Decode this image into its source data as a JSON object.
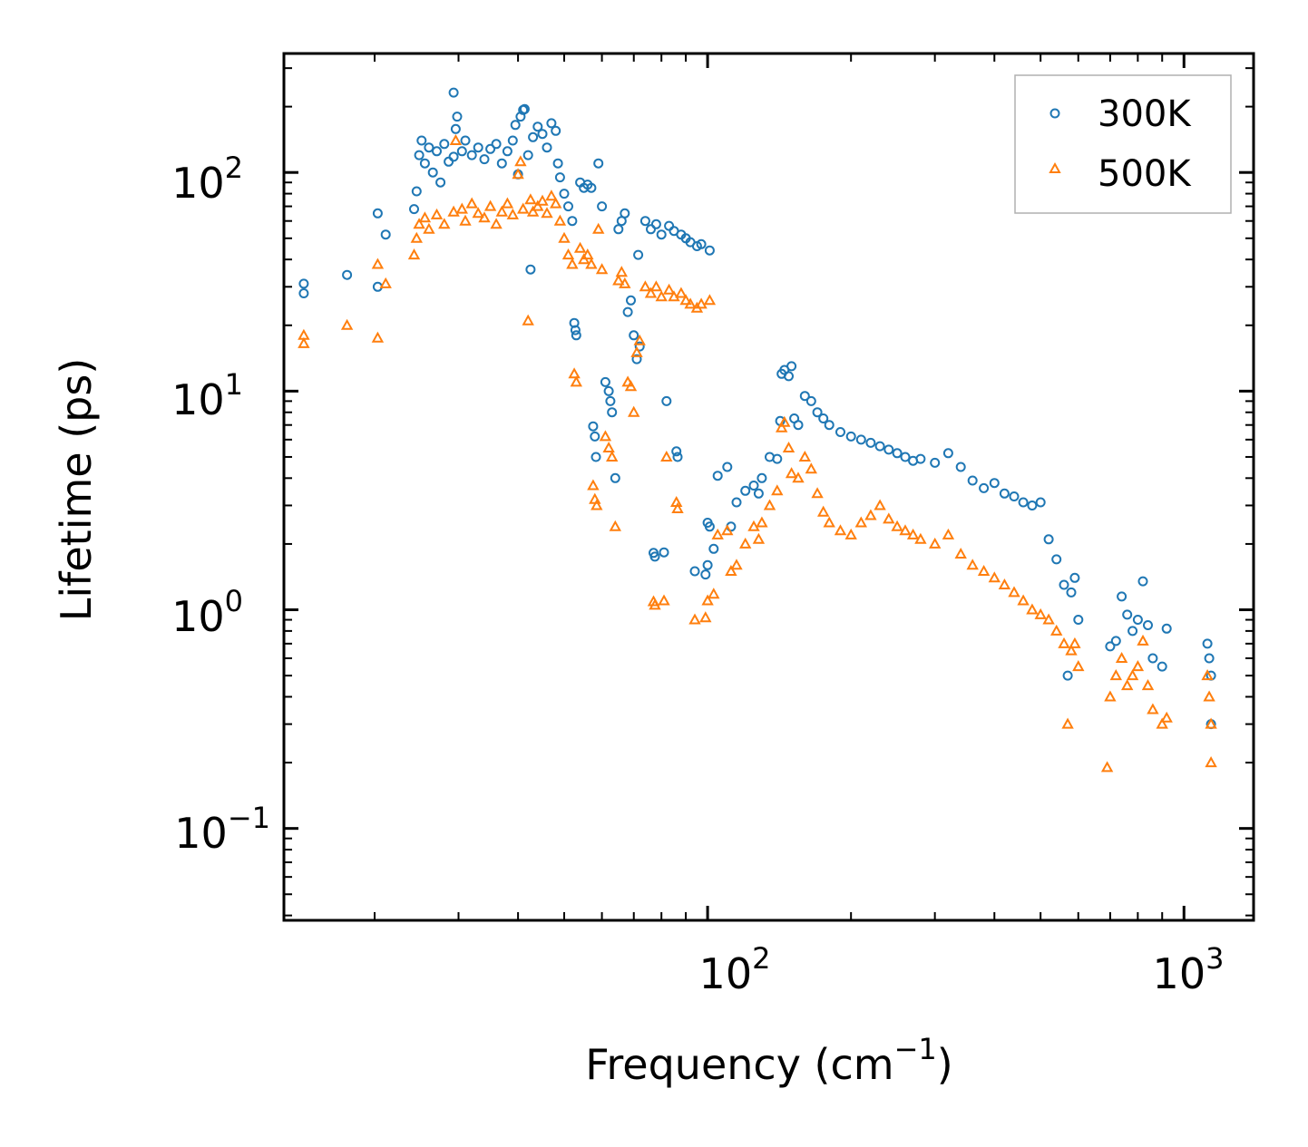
{
  "chart_data": {
    "type": "scatter",
    "xscale": "log",
    "yscale": "log",
    "xlabel": "Frequency (cm",
    "xlabel_sup": "−1",
    "xlabel_close": ")",
    "ylabel": "Lifetime (ps)",
    "xlim": [
      12.9,
      1400
    ],
    "ylim": [
      0.038,
      350
    ],
    "x_ticks": [
      {
        "value": 100,
        "base": "10",
        "exp": "2"
      },
      {
        "value": 1000,
        "base": "10",
        "exp": "3"
      }
    ],
    "y_ticks": [
      {
        "value": 0.1,
        "base": "10",
        "exp": "−1"
      },
      {
        "value": 1,
        "base": "10",
        "exp": "0"
      },
      {
        "value": 10,
        "base": "10",
        "exp": "1"
      },
      {
        "value": 100,
        "base": "10",
        "exp": "2"
      }
    ],
    "legend": {
      "position": "top-right",
      "entries": [
        "300K",
        "500K"
      ]
    },
    "series": [
      {
        "name": "300K",
        "marker": "circle",
        "color": "#1f77b4",
        "points": [
          [
            14.2,
            28
          ],
          [
            14.2,
            31
          ],
          [
            17.5,
            34
          ],
          [
            20.3,
            30
          ],
          [
            20.3,
            65
          ],
          [
            21.1,
            52
          ],
          [
            24.2,
            68
          ],
          [
            24.5,
            82
          ],
          [
            24.8,
            120
          ],
          [
            25.1,
            140
          ],
          [
            25.5,
            110
          ],
          [
            26.0,
            130
          ],
          [
            26.5,
            100
          ],
          [
            27.0,
            125
          ],
          [
            27.5,
            90
          ],
          [
            28.0,
            135
          ],
          [
            28.6,
            112
          ],
          [
            29.3,
            118
          ],
          [
            29.3,
            232
          ],
          [
            29.6,
            158
          ],
          [
            29.8,
            180
          ],
          [
            30.5,
            125
          ],
          [
            31.0,
            140
          ],
          [
            32.0,
            120
          ],
          [
            33.0,
            130
          ],
          [
            34.0,
            115
          ],
          [
            35.0,
            128
          ],
          [
            36.0,
            135
          ],
          [
            37.0,
            110
          ],
          [
            38.0,
            125
          ],
          [
            39.0,
            140
          ],
          [
            39.5,
            165
          ],
          [
            40.0,
            98
          ],
          [
            40.5,
            180
          ],
          [
            41.0,
            193
          ],
          [
            41.3,
            195
          ],
          [
            42.0,
            120
          ],
          [
            42.5,
            36
          ],
          [
            43.0,
            145
          ],
          [
            44.0,
            162
          ],
          [
            45.0,
            150
          ],
          [
            46.0,
            130
          ],
          [
            47.0,
            168
          ],
          [
            48.0,
            155
          ],
          [
            48.5,
            110
          ],
          [
            49.0,
            95
          ],
          [
            50.0,
            80
          ],
          [
            51.0,
            70
          ],
          [
            52.0,
            60
          ],
          [
            52.5,
            20.5
          ],
          [
            52.8,
            19
          ],
          [
            53.0,
            18
          ],
          [
            54.0,
            90
          ],
          [
            55.0,
            85
          ],
          [
            56.0,
            88
          ],
          [
            57.0,
            85
          ],
          [
            57.5,
            6.9
          ],
          [
            58.0,
            6.2
          ],
          [
            58.3,
            5
          ],
          [
            59.0,
            110
          ],
          [
            60.0,
            70
          ],
          [
            61.0,
            11
          ],
          [
            62.0,
            10
          ],
          [
            62.5,
            9
          ],
          [
            63.0,
            8
          ],
          [
            64.0,
            4
          ],
          [
            65.0,
            55
          ],
          [
            66.0,
            60
          ],
          [
            67.0,
            65
          ],
          [
            68.0,
            23
          ],
          [
            69.0,
            26
          ],
          [
            70.0,
            18
          ],
          [
            71.0,
            14
          ],
          [
            71.5,
            42
          ],
          [
            72.0,
            16
          ],
          [
            74.0,
            60
          ],
          [
            76.0,
            55
          ],
          [
            77.0,
            1.82
          ],
          [
            77.5,
            1.75
          ],
          [
            78.0,
            58
          ],
          [
            80.0,
            52
          ],
          [
            81.0,
            1.83
          ],
          [
            82.0,
            9
          ],
          [
            83.0,
            57
          ],
          [
            85.0,
            54
          ],
          [
            86.0,
            5.3
          ],
          [
            86.5,
            5
          ],
          [
            88.0,
            52
          ],
          [
            90.0,
            50
          ],
          [
            92.0,
            48
          ],
          [
            94.0,
            1.5
          ],
          [
            95.0,
            46
          ],
          [
            97.0,
            47
          ],
          [
            99.0,
            1.45
          ],
          [
            100.0,
            2.5
          ],
          [
            100.0,
            1.6
          ],
          [
            101.0,
            2.4
          ],
          [
            101.0,
            44
          ],
          [
            103.0,
            1.9
          ],
          [
            105.0,
            4.1
          ],
          [
            110.0,
            4.5
          ],
          [
            112.0,
            2.4
          ],
          [
            115.0,
            3.1
          ],
          [
            120.0,
            3.5
          ],
          [
            125.0,
            3.7
          ],
          [
            128.0,
            3.4
          ],
          [
            130.0,
            4
          ],
          [
            135.0,
            5
          ],
          [
            140.0,
            4.9
          ],
          [
            142.0,
            7.3
          ],
          [
            143.0,
            12
          ],
          [
            145.0,
            12.5
          ],
          [
            148.0,
            11.7
          ],
          [
            150.0,
            13
          ],
          [
            152.0,
            7.5
          ],
          [
            155.0,
            7
          ],
          [
            160.0,
            9.5
          ],
          [
            165.0,
            9
          ],
          [
            170.0,
            8
          ],
          [
            175.0,
            7.5
          ],
          [
            180.0,
            7
          ],
          [
            190.0,
            6.5
          ],
          [
            200.0,
            6.2
          ],
          [
            210.0,
            6
          ],
          [
            220.0,
            5.8
          ],
          [
            230.0,
            5.6
          ],
          [
            240.0,
            5.4
          ],
          [
            250.0,
            5.2
          ],
          [
            260.0,
            5
          ],
          [
            270.0,
            4.8
          ],
          [
            280.0,
            4.9
          ],
          [
            300.0,
            4.7
          ],
          [
            320.0,
            5.2
          ],
          [
            340.0,
            4.5
          ],
          [
            360.0,
            3.9
          ],
          [
            380.0,
            3.6
          ],
          [
            400.0,
            3.8
          ],
          [
            420.0,
            3.4
          ],
          [
            440.0,
            3.3
          ],
          [
            460.0,
            3.1
          ],
          [
            480.0,
            3
          ],
          [
            500.0,
            3.1
          ],
          [
            520.0,
            2.1
          ],
          [
            540.0,
            1.7
          ],
          [
            560.0,
            1.3
          ],
          [
            570.0,
            0.5
          ],
          [
            580.0,
            1.2
          ],
          [
            590.0,
            1.4
          ],
          [
            600.0,
            0.9
          ],
          [
            700.0,
            0.68
          ],
          [
            720.0,
            0.72
          ],
          [
            740.0,
            1.15
          ],
          [
            760.0,
            0.95
          ],
          [
            780.0,
            0.8
          ],
          [
            800.0,
            0.9
          ],
          [
            820.0,
            1.35
          ],
          [
            840.0,
            0.85
          ],
          [
            860.0,
            0.6
          ],
          [
            900.0,
            0.55
          ],
          [
            920.0,
            0.82
          ],
          [
            1120.0,
            0.7
          ],
          [
            1130.0,
            0.6
          ],
          [
            1140.0,
            0.5
          ],
          [
            1140.0,
            0.3
          ]
        ]
      },
      {
        "name": "500K",
        "marker": "triangle",
        "color": "#ff7f0e",
        "points": [
          [
            14.2,
            16.5
          ],
          [
            14.2,
            18
          ],
          [
            17.5,
            20
          ],
          [
            20.3,
            17.5
          ],
          [
            20.3,
            38
          ],
          [
            21.1,
            31
          ],
          [
            24.2,
            42
          ],
          [
            24.5,
            50
          ],
          [
            24.8,
            58
          ],
          [
            25.5,
            62
          ],
          [
            26.0,
            55
          ],
          [
            27.0,
            64
          ],
          [
            28.0,
            58
          ],
          [
            29.3,
            66
          ],
          [
            29.6,
            140
          ],
          [
            30.5,
            68
          ],
          [
            31.0,
            60
          ],
          [
            32.0,
            72
          ],
          [
            33.0,
            65
          ],
          [
            34.0,
            62
          ],
          [
            35.0,
            70
          ],
          [
            36.0,
            58
          ],
          [
            37.0,
            66
          ],
          [
            38.0,
            72
          ],
          [
            39.0,
            64
          ],
          [
            40.0,
            98
          ],
          [
            40.5,
            112
          ],
          [
            41.0,
            68
          ],
          [
            42.0,
            21
          ],
          [
            42.5,
            75
          ],
          [
            43.0,
            66
          ],
          [
            44.0,
            70
          ],
          [
            45.0,
            74
          ],
          [
            46.0,
            65
          ],
          [
            47.0,
            78
          ],
          [
            48.0,
            72
          ],
          [
            49.0,
            60
          ],
          [
            50.0,
            50
          ],
          [
            51.0,
            42
          ],
          [
            52.0,
            38
          ],
          [
            52.5,
            12
          ],
          [
            53.0,
            11
          ],
          [
            54.0,
            45
          ],
          [
            55.0,
            40
          ],
          [
            56.0,
            42
          ],
          [
            57.0,
            38
          ],
          [
            57.5,
            3.7
          ],
          [
            58.0,
            3.2
          ],
          [
            58.5,
            3
          ],
          [
            59.0,
            55
          ],
          [
            60.0,
            36
          ],
          [
            61.0,
            6.2
          ],
          [
            62.0,
            5.5
          ],
          [
            63.0,
            5
          ],
          [
            64.0,
            2.4
          ],
          [
            65.0,
            32
          ],
          [
            66.0,
            35
          ],
          [
            67.0,
            31
          ],
          [
            68.0,
            11
          ],
          [
            69.0,
            10.5
          ],
          [
            70.0,
            8
          ],
          [
            71.0,
            15
          ],
          [
            72.0,
            17
          ],
          [
            74.0,
            30
          ],
          [
            76.0,
            28
          ],
          [
            77.0,
            1.09
          ],
          [
            77.5,
            1.05
          ],
          [
            78.0,
            30
          ],
          [
            80.0,
            27
          ],
          [
            81.0,
            1.1
          ],
          [
            82.0,
            5
          ],
          [
            83.0,
            29
          ],
          [
            85.0,
            27
          ],
          [
            86.0,
            3.1
          ],
          [
            86.5,
            2.9
          ],
          [
            88.0,
            28
          ],
          [
            90.0,
            26
          ],
          [
            92.0,
            25
          ],
          [
            94.0,
            0.9
          ],
          [
            95.0,
            24
          ],
          [
            97.0,
            25
          ],
          [
            99.0,
            0.92
          ],
          [
            100.0,
            1.1
          ],
          [
            101.0,
            26
          ],
          [
            103.0,
            1.18
          ],
          [
            105.0,
            2.2
          ],
          [
            110.0,
            2.3
          ],
          [
            112.0,
            1.5
          ],
          [
            115.0,
            1.6
          ],
          [
            120.0,
            2
          ],
          [
            125.0,
            2.4
          ],
          [
            128.0,
            2.1
          ],
          [
            130.0,
            2.5
          ],
          [
            135.0,
            3
          ],
          [
            140.0,
            3.5
          ],
          [
            143.0,
            6.8
          ],
          [
            145.0,
            7.2
          ],
          [
            148.0,
            5.5
          ],
          [
            150.0,
            4.2
          ],
          [
            155.0,
            4
          ],
          [
            160.0,
            5
          ],
          [
            165.0,
            4.4
          ],
          [
            170.0,
            3.4
          ],
          [
            175.0,
            2.8
          ],
          [
            180.0,
            2.5
          ],
          [
            190.0,
            2.3
          ],
          [
            200.0,
            2.2
          ],
          [
            210.0,
            2.5
          ],
          [
            220.0,
            2.7
          ],
          [
            230.0,
            3
          ],
          [
            240.0,
            2.6
          ],
          [
            250.0,
            2.4
          ],
          [
            260.0,
            2.3
          ],
          [
            270.0,
            2.2
          ],
          [
            280.0,
            2.1
          ],
          [
            300.0,
            2
          ],
          [
            320.0,
            2.2
          ],
          [
            340.0,
            1.8
          ],
          [
            360.0,
            1.6
          ],
          [
            380.0,
            1.5
          ],
          [
            400.0,
            1.4
          ],
          [
            420.0,
            1.3
          ],
          [
            440.0,
            1.2
          ],
          [
            460.0,
            1.1
          ],
          [
            480.0,
            1
          ],
          [
            500.0,
            0.95
          ],
          [
            520.0,
            0.9
          ],
          [
            540.0,
            0.8
          ],
          [
            560.0,
            0.7
          ],
          [
            570.0,
            0.3
          ],
          [
            580.0,
            0.65
          ],
          [
            590.0,
            0.7
          ],
          [
            600.0,
            0.55
          ],
          [
            690.0,
            0.19
          ],
          [
            700.0,
            0.4
          ],
          [
            720.0,
            0.5
          ],
          [
            740.0,
            0.6
          ],
          [
            760.0,
            0.45
          ],
          [
            780.0,
            0.5
          ],
          [
            800.0,
            0.55
          ],
          [
            820.0,
            0.72
          ],
          [
            840.0,
            0.45
          ],
          [
            860.0,
            0.35
          ],
          [
            900.0,
            0.3
          ],
          [
            920.0,
            0.32
          ],
          [
            1120.0,
            0.5
          ],
          [
            1130.0,
            0.4
          ],
          [
            1140.0,
            0.3
          ],
          [
            1140.0,
            0.2
          ]
        ]
      }
    ]
  }
}
